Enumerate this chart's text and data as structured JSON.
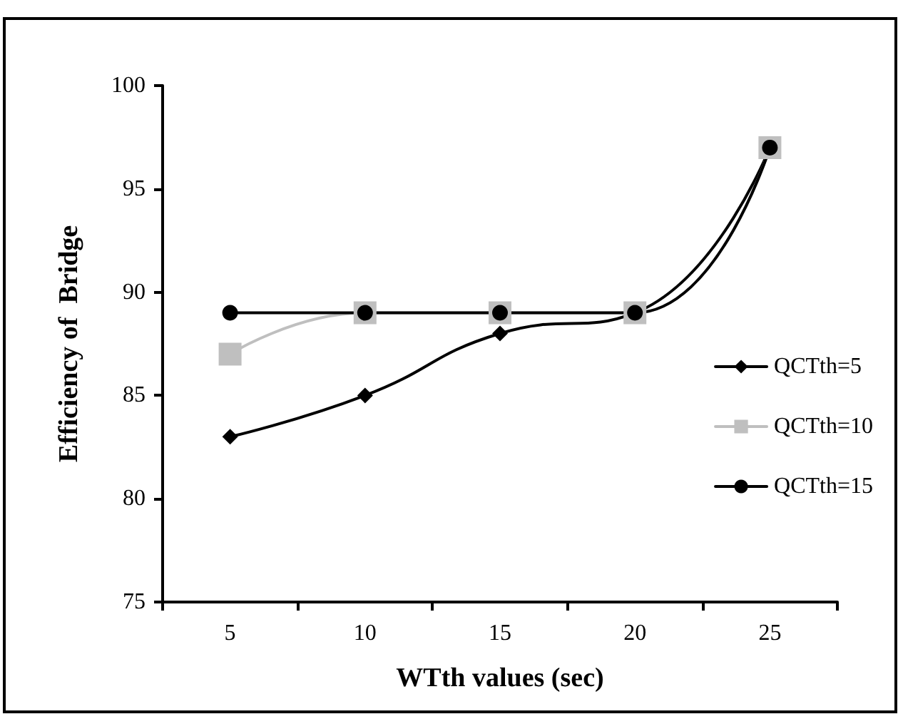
{
  "chart_data": {
    "type": "line",
    "xlabel": "WTth values (sec)",
    "ylabel": "Efficiency of  Bridge",
    "categories": [
      "5",
      "10",
      "15",
      "20",
      "25"
    ],
    "series": [
      {
        "name": "QCTth=5",
        "color": "#000000",
        "marker": "diamond",
        "values": [
          83,
          85,
          88,
          89,
          97
        ]
      },
      {
        "name": "QCTth=10",
        "color": "#bfbfbf",
        "marker": "square",
        "values": [
          87,
          89,
          89,
          89,
          97
        ]
      },
      {
        "name": "QCTth=15",
        "color": "#000000",
        "marker": "circle",
        "values": [
          89,
          89,
          89,
          89,
          97
        ]
      }
    ],
    "ylim": [
      75,
      100
    ],
    "yticks": [
      75,
      80,
      85,
      90,
      95,
      100
    ],
    "grid": false,
    "legend": "right",
    "line_style": "solid"
  }
}
